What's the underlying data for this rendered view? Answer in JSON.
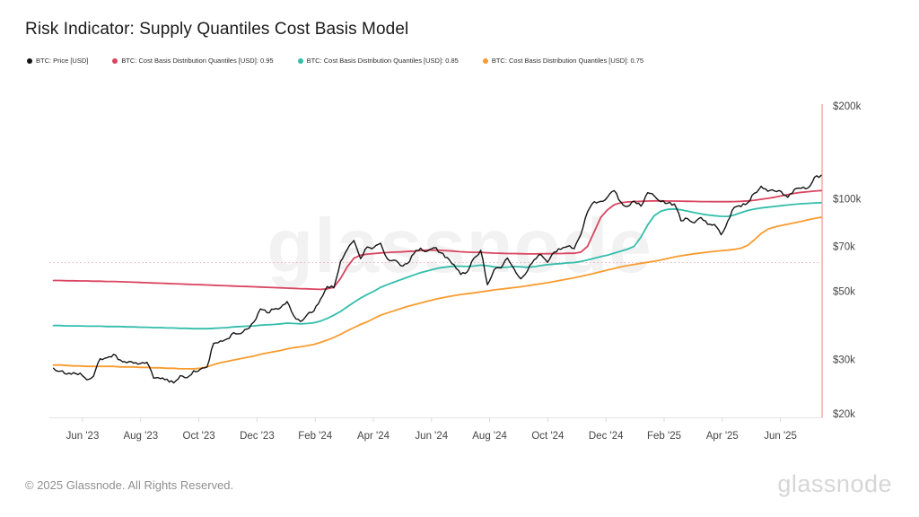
{
  "title": "Risk Indicator: Supply Quantiles Cost Basis Model",
  "watermark": "glassnode",
  "footer": {
    "copyright": "© 2025 Glassnode. All Rights Reserved.",
    "brand": "glassnode"
  },
  "colors": {
    "price": "#141414",
    "q95": "#d9455f",
    "q85": "#33bdab",
    "q75": "#f99b2e",
    "axis_text": "#464646",
    "axis_line": "#e4e4e4",
    "tick_mark": "#d9d9d9",
    "reference_dotted": "#eab3bd",
    "right_edge_line": "#f7a6a6"
  },
  "chart_data": {
    "type": "line",
    "title": "Risk Indicator: Supply Quantiles Cost Basis Model",
    "unit": "USD (thousands), log scale",
    "x_start": "2023-05-01",
    "x_end": "2025-07-13",
    "x_interval": "weekly",
    "x_tick_labels": [
      "Jun '23",
      "Aug '23",
      "Oct '23",
      "Dec '23",
      "Feb '24",
      "Apr '24",
      "Jun '24",
      "Aug '24",
      "Oct '24",
      "Dec '24",
      "Feb '25",
      "Apr '25",
      "Jun '25"
    ],
    "y_axis": {
      "scale": "log",
      "range_k": [
        20,
        200
      ],
      "tick_values_k": [
        200,
        100,
        70,
        50,
        30,
        20
      ],
      "tick_labels": [
        "$200k",
        "$100k",
        "$70k",
        "$50k",
        "$30k",
        "$20k"
      ]
    },
    "grid": "off",
    "legend_position": "top",
    "reference_line": {
      "value_k": 62,
      "style": "dotted"
    },
    "series": [
      {
        "name": "BTC: Price [USD]",
        "color": "#141414",
        "values": [
          28.1,
          27.5,
          26.9,
          27.2,
          27.1,
          25.8,
          26.5,
          30.2,
          30.4,
          31.2,
          29.9,
          29.3,
          29.2,
          29.1,
          29.4,
          26.1,
          26.0,
          25.9,
          25.2,
          26.6,
          26.2,
          27.6,
          27.9,
          28.4,
          33.9,
          34.5,
          35.0,
          36.7,
          36.4,
          37.7,
          39.7,
          43.8,
          42.6,
          43.7,
          44.2,
          46.3,
          41.6,
          39.9,
          42.0,
          43.1,
          47.1,
          51.8,
          51.3,
          62.4,
          68.3,
          73.1,
          63.8,
          69.6,
          69.4,
          71.6,
          63.8,
          63.1,
          60.6,
          61.5,
          66.3,
          69.0,
          67.5,
          69.3,
          66.7,
          64.3,
          61.0,
          56.7,
          57.9,
          64.1,
          67.9,
          52.5,
          58.7,
          59.5,
          64.1,
          59.1,
          54.9,
          58.2,
          63.3,
          65.8,
          62.1,
          67.0,
          68.4,
          69.9,
          68.8,
          76.5,
          90.6,
          97.7,
          98.0,
          101.2,
          106.1,
          97.4,
          94.3,
          98.2,
          94.5,
          104.5,
          102.1,
          97.7,
          96.6,
          96.1,
          84.7,
          86.0,
          83.4,
          86.8,
          82.5,
          82.4,
          76.3,
          84.5,
          93.7,
          94.2,
          97.0,
          104.1,
          109.7,
          105.6,
          105.9,
          105.5,
          101.0,
          107.2,
          108.0,
          108.2,
          117.4,
          119.0
        ]
      },
      {
        "name": "BTC: Cost Basis Distribution Quantiles [USD]: 0.95",
        "color": "#d9455f",
        "values": [
          54.2,
          54.2,
          54.1,
          54.1,
          54.0,
          54.0,
          53.9,
          53.9,
          53.8,
          53.8,
          53.7,
          53.6,
          53.5,
          53.4,
          53.3,
          53.2,
          53.1,
          53.0,
          52.9,
          52.8,
          52.7,
          52.6,
          52.5,
          52.4,
          52.3,
          52.2,
          52.1,
          52.0,
          51.9,
          51.8,
          51.7,
          51.6,
          51.5,
          51.4,
          51.3,
          51.2,
          51.1,
          51.0,
          50.9,
          50.8,
          50.7,
          50.9,
          51.5,
          55.0,
          60.0,
          64.0,
          65.5,
          66.0,
          66.3,
          66.6,
          66.8,
          67.0,
          67.1,
          67.3,
          67.5,
          67.8,
          68.0,
          68.0,
          67.9,
          67.7,
          67.5,
          67.2,
          67.0,
          66.9,
          66.9,
          66.7,
          66.5,
          66.4,
          66.3,
          66.3,
          66.2,
          66.1,
          66.1,
          66.2,
          66.2,
          66.3,
          66.3,
          66.4,
          66.4,
          67.0,
          70.0,
          78.0,
          87.0,
          92.0,
          95.5,
          97.0,
          97.5,
          97.8,
          98.0,
          98.2,
          98.3,
          98.3,
          98.2,
          98.2,
          98.1,
          98.0,
          97.9,
          97.8,
          97.8,
          97.7,
          97.7,
          97.7,
          97.8,
          98.0,
          98.3,
          98.8,
          99.5,
          100.2,
          101.0,
          102.0,
          103.0,
          104.0,
          104.8,
          105.3,
          105.8,
          106.2
        ]
      },
      {
        "name": "BTC: Cost Basis Distribution Quantiles [USD]: 0.85",
        "color": "#33bdab",
        "values": [
          38.7,
          38.7,
          38.6,
          38.6,
          38.6,
          38.5,
          38.5,
          38.5,
          38.4,
          38.4,
          38.4,
          38.3,
          38.3,
          38.2,
          38.2,
          38.1,
          38.1,
          38.0,
          38.0,
          37.9,
          37.9,
          37.8,
          37.8,
          37.8,
          37.9,
          38.0,
          38.1,
          38.3,
          38.4,
          38.5,
          38.6,
          38.8,
          38.9,
          39.0,
          39.2,
          39.4,
          39.3,
          39.2,
          39.3,
          39.5,
          40.0,
          40.8,
          41.8,
          43.0,
          44.5,
          46.0,
          47.5,
          48.8,
          50.0,
          51.5,
          52.5,
          53.5,
          54.5,
          55.5,
          56.5,
          57.5,
          58.2,
          59.0,
          59.6,
          60.0,
          60.3,
          60.3,
          60.2,
          60.4,
          60.8,
          60.5,
          60.0,
          59.7,
          59.9,
          60.2,
          60.0,
          59.8,
          60.1,
          60.6,
          61.0,
          61.3,
          61.5,
          61.8,
          62.0,
          62.5,
          63.2,
          64.0,
          64.8,
          65.5,
          66.5,
          67.5,
          68.5,
          70.0,
          75.0,
          82.0,
          88.0,
          91.0,
          92.3,
          92.5,
          92.0,
          91.0,
          90.0,
          89.2,
          88.5,
          88.0,
          87.6,
          87.5,
          88.5,
          90.0,
          91.5,
          92.5,
          93.2,
          93.8,
          94.3,
          94.8,
          95.3,
          95.8,
          96.2,
          96.5,
          96.8,
          97.0
        ]
      },
      {
        "name": "BTC: Cost Basis Distribution Quantiles [USD]: 0.75",
        "color": "#f99b2e",
        "values": [
          28.8,
          28.8,
          28.7,
          28.6,
          28.6,
          28.5,
          28.5,
          28.5,
          28.5,
          28.5,
          28.4,
          28.4,
          28.4,
          28.3,
          28.3,
          28.2,
          28.2,
          28.1,
          28.1,
          28.0,
          28.0,
          28.0,
          28.1,
          28.4,
          28.9,
          29.3,
          29.6,
          29.9,
          30.2,
          30.5,
          30.8,
          31.2,
          31.5,
          31.8,
          32.1,
          32.5,
          32.8,
          33.0,
          33.3,
          33.6,
          34.1,
          34.7,
          35.4,
          36.2,
          37.2,
          38.1,
          39.0,
          39.8,
          40.8,
          41.8,
          42.5,
          43.2,
          43.9,
          44.6,
          45.2,
          45.8,
          46.4,
          47.0,
          47.5,
          48.0,
          48.4,
          48.8,
          49.1,
          49.4,
          49.8,
          50.1,
          50.5,
          50.8,
          51.1,
          51.4,
          51.7,
          52.1,
          52.5,
          52.9,
          53.3,
          53.8,
          54.3,
          54.8,
          55.3,
          55.9,
          56.5,
          57.2,
          57.9,
          58.6,
          59.3,
          60.0,
          60.6,
          61.1,
          61.6,
          62.1,
          62.6,
          63.2,
          63.9,
          64.6,
          65.2,
          65.7,
          66.2,
          66.6,
          67.0,
          67.4,
          67.7,
          68.0,
          68.4,
          69.0,
          70.5,
          73.5,
          77.0,
          79.5,
          80.8,
          81.8,
          82.6,
          83.4,
          84.3,
          85.3,
          86.2,
          87.0
        ]
      }
    ]
  }
}
